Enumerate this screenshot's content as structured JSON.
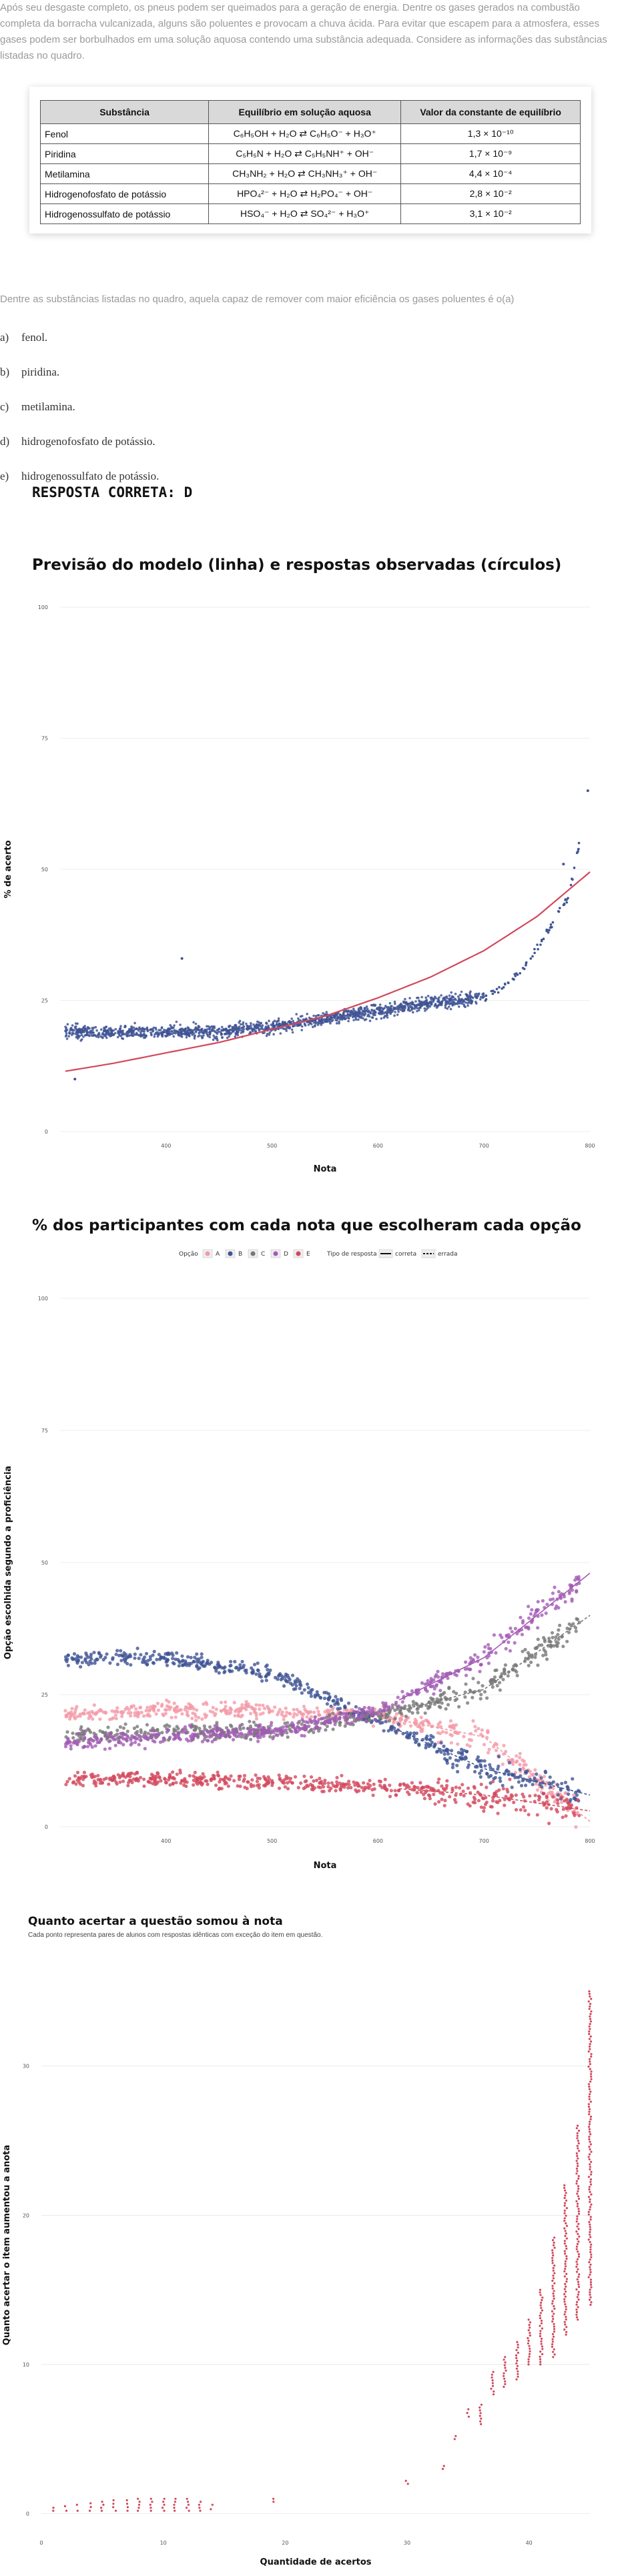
{
  "question": {
    "intro": "Após seu desgaste completo, os pneus podem ser queimados para a geração de energia. Dentre os gases gerados na combustão completa da borracha vulcanizada, alguns são poluentes e provocam a chuva ácida. Para evitar que escapem para a atmosfera, esses gases podem ser borbulhados em uma solução aquosa contendo uma substância adequada. Considere as informações das substâncias listadas no quadro.",
    "table": {
      "headers": [
        "Substância",
        "Equilíbrio em solução aquosa",
        "Valor da constante de equilíbrio"
      ],
      "rows": [
        {
          "name": "Fenol",
          "equation": "C₆H₅OH + H₂O ⇄ C₆H₅O⁻ + H₃O⁺",
          "k": "1,3 × 10⁻¹⁰"
        },
        {
          "name": "Piridina",
          "equation": "C₅H₅N + H₂O ⇄ C₅H₅NH⁺ + OH⁻",
          "k": "1,7 × 10⁻⁹"
        },
        {
          "name": "Metilamina",
          "equation": "CH₃NH₂ + H₂O ⇄ CH₃NH₃⁺ + OH⁻",
          "k": "4,4 × 10⁻⁴"
        },
        {
          "name": "Hidrogenofosfato de potássio",
          "equation": "HPO₄²⁻ + H₂O ⇄ H₂PO₄⁻ + OH⁻",
          "k": "2,8 × 10⁻²"
        },
        {
          "name": "Hidrogenossulfato de potássio",
          "equation": "HSO₄⁻ + H₂O ⇄ SO₄²⁻ + H₃O⁺",
          "k": "3,1 × 10⁻²"
        }
      ]
    },
    "prompt": "Dentre as substâncias listadas no quadro, aquela capaz de remover com maior eficiência os gases poluentes é o(a)",
    "options": [
      {
        "letter": "a)",
        "text": "fenol."
      },
      {
        "letter": "b)",
        "text": "piridina."
      },
      {
        "letter": "c)",
        "text": "metilamina."
      },
      {
        "letter": "d)",
        "text": "hidrogenofosfato de potássio."
      },
      {
        "letter": "e)",
        "text": "hidrogenossulfato de potássio."
      }
    ],
    "answer": "RESPOSTA CORRETA: D"
  },
  "colors": {
    "blue": "#3f5494",
    "red": "#d2485c",
    "pink": "#f49aa7",
    "gray": "#777777",
    "purple": "#a35bb5",
    "grid": "#dddddd"
  },
  "chart_data": [
    {
      "type": "scatter",
      "title": "Previsão do modelo (linha) e respostas observadas (círculos)",
      "xlabel": "Nota",
      "ylabel": "% de acerto",
      "xlim": [
        300,
        800
      ],
      "ylim": [
        0,
        100
      ],
      "xticks": [
        "400",
        "500",
        "600",
        "700",
        "800"
      ],
      "yticks": [
        "0",
        "25",
        "50",
        "75",
        "100"
      ],
      "observed_trend": {
        "name": "observado",
        "x": [
          305,
          350,
          400,
          450,
          500,
          550,
          600,
          650,
          700,
          720,
          740,
          760,
          780,
          800
        ],
        "y": [
          19,
          19,
          19,
          19,
          20,
          21.5,
          23,
          24.5,
          25.5,
          28,
          32,
          38,
          45,
          65
        ]
      },
      "model_curve": {
        "name": "previsão do modelo",
        "x": [
          305,
          350,
          400,
          450,
          500,
          550,
          600,
          650,
          700,
          750,
          800
        ],
        "y": [
          11.5,
          13,
          15,
          17,
          19.5,
          22,
          25.5,
          29.5,
          34.5,
          41,
          49.5
        ]
      },
      "outliers": [
        {
          "x": 314,
          "y": 10
        },
        {
          "x": 415,
          "y": 33
        },
        {
          "x": 775,
          "y": 51
        },
        {
          "x": 798,
          "y": 65
        }
      ]
    },
    {
      "type": "scatter",
      "title": "% dos participantes com cada nota que escolheram cada opção",
      "xlabel": "Nota",
      "ylabel": "Opção escolhida segundo a proficiência",
      "xlim": [
        300,
        800
      ],
      "ylim": [
        0,
        100
      ],
      "xticks": [
        "400",
        "500",
        "600",
        "700",
        "800"
      ],
      "yticks": [
        "0",
        "25",
        "50",
        "75",
        "100"
      ],
      "legend": {
        "title": "Opção",
        "items": [
          "A",
          "B",
          "C",
          "D",
          "E"
        ],
        "type_title": "Tipo de resposta",
        "type_items": [
          "correta",
          "errada"
        ],
        "position": "top-center"
      },
      "series": [
        {
          "name": "A",
          "color": "pink",
          "x": [
            305,
            400,
            500,
            600,
            700,
            800
          ],
          "y": [
            21,
            22,
            22,
            21,
            17,
            1
          ]
        },
        {
          "name": "B",
          "color": "blue",
          "x": [
            305,
            400,
            500,
            600,
            700,
            800
          ],
          "y": [
            32,
            32,
            29,
            20,
            11,
            6
          ]
        },
        {
          "name": "C",
          "color": "gray",
          "x": [
            305,
            400,
            500,
            600,
            700,
            800
          ],
          "y": [
            17,
            18,
            18,
            21,
            26,
            40
          ]
        },
        {
          "name": "D",
          "color": "purple",
          "x": [
            305,
            400,
            500,
            600,
            700,
            800
          ],
          "y": [
            16,
            17,
            18,
            22,
            32,
            48
          ]
        },
        {
          "name": "E",
          "color": "red",
          "x": [
            305,
            400,
            500,
            600,
            700,
            800
          ],
          "y": [
            9,
            9,
            8.5,
            7.5,
            6,
            3
          ]
        }
      ]
    },
    {
      "type": "scatter",
      "title": "Quanto acertar a questão somou à nota",
      "subtitle": "Cada ponto representa pares de alunos com respostas idênticas com exceção do item em questão.",
      "xlabel": "Quantidade de acertos",
      "ylabel": "Quanto acertar o item aumentou a anota",
      "xlim": [
        0,
        45
      ],
      "ylim": [
        -1,
        37
      ],
      "xticks": [
        "0",
        "10",
        "20",
        "30",
        "40"
      ],
      "yticks": [
        "0",
        "10",
        "20",
        "30"
      ],
      "clusters": [
        {
          "x": 1,
          "y_min": 0.2,
          "y_max": 0.4
        },
        {
          "x": 2,
          "y_min": 0.2,
          "y_max": 0.5
        },
        {
          "x": 3,
          "y_min": 0.2,
          "y_max": 0.6
        },
        {
          "x": 4,
          "y_min": 0.2,
          "y_max": 0.7
        },
        {
          "x": 5,
          "y_min": 0.2,
          "y_max": 0.8
        },
        {
          "x": 6,
          "y_min": 0.2,
          "y_max": 0.9
        },
        {
          "x": 7,
          "y_min": 0.2,
          "y_max": 0.9
        },
        {
          "x": 8,
          "y_min": 0.2,
          "y_max": 1.0
        },
        {
          "x": 9,
          "y_min": 0.2,
          "y_max": 1.0
        },
        {
          "x": 10,
          "y_min": 0.2,
          "y_max": 1.0
        },
        {
          "x": 11,
          "y_min": 0.2,
          "y_max": 1.0
        },
        {
          "x": 12,
          "y_min": 0.2,
          "y_max": 1.0
        },
        {
          "x": 13,
          "y_min": 0.2,
          "y_max": 0.8
        },
        {
          "x": 14,
          "y_min": 0.3,
          "y_max": 0.6
        },
        {
          "x": 19,
          "y_min": 0.8,
          "y_max": 1.0
        },
        {
          "x": 30,
          "y_min": 2.0,
          "y_max": 2.2
        },
        {
          "x": 33,
          "y_min": 3.0,
          "y_max": 3.2
        },
        {
          "x": 34,
          "y_min": 5.0,
          "y_max": 5.2
        },
        {
          "x": 35,
          "y_min": 6.5,
          "y_max": 7.0
        },
        {
          "x": 36,
          "y_min": 6.0,
          "y_max": 7.3
        },
        {
          "x": 37,
          "y_min": 8.0,
          "y_max": 9.5
        },
        {
          "x": 38,
          "y_min": 8.5,
          "y_max": 10.5
        },
        {
          "x": 39,
          "y_min": 9.0,
          "y_max": 11.5
        },
        {
          "x": 40,
          "y_min": 10.0,
          "y_max": 13.0
        },
        {
          "x": 41,
          "y_min": 10.0,
          "y_max": 15.0
        },
        {
          "x": 42,
          "y_min": 10.5,
          "y_max": 18.5
        },
        {
          "x": 43,
          "y_min": 12.0,
          "y_max": 22.0
        },
        {
          "x": 44,
          "y_min": 13.0,
          "y_max": 26.0
        },
        {
          "x": 45,
          "y_min": 14.0,
          "y_max": 35.0
        }
      ]
    }
  ]
}
